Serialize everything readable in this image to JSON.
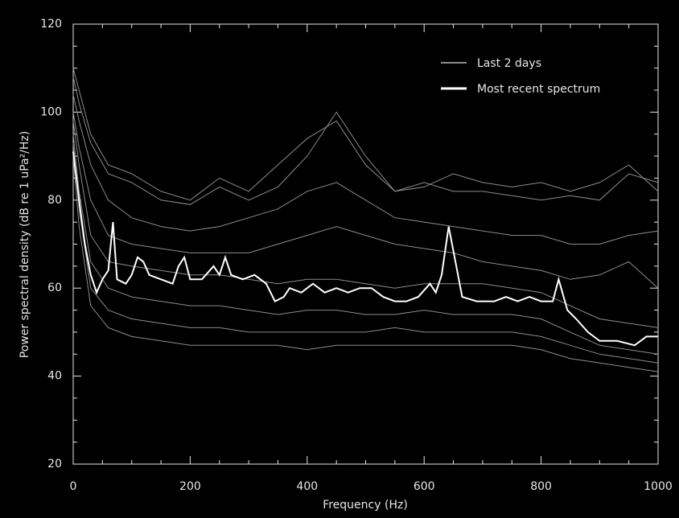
{
  "chart_data": {
    "type": "line",
    "xlabel": "Frequency (Hz)",
    "ylabel": "Power spectral density (dB re 1 uPa²/Hz)",
    "xlim": [
      0,
      1000
    ],
    "xticks": [
      0,
      200,
      400,
      600,
      800,
      1000
    ],
    "ylim": [
      20,
      120
    ],
    "yticks": [
      20,
      40,
      60,
      80,
      100,
      120
    ],
    "legend": "upper right",
    "series": [
      {
        "name": "Last 2 days",
        "color": "#8c8c8c",
        "x": [
          0,
          10,
          30,
          60,
          100,
          150,
          200,
          250,
          300,
          350,
          400,
          450,
          500,
          550,
          600,
          650,
          700,
          750,
          800,
          850,
          900,
          950,
          1000
        ],
        "lines": [
          [
            110,
            105,
            95,
            88,
            86,
            82,
            80,
            85,
            82,
            88,
            94,
            98,
            88,
            82,
            83,
            86,
            84,
            83,
            84,
            82,
            84,
            88,
            82
          ],
          [
            108,
            102,
            93,
            86,
            84,
            80,
            79,
            83,
            80,
            83,
            90,
            100,
            90,
            82,
            84,
            82,
            82,
            81,
            80,
            81,
            80,
            86,
            84
          ],
          [
            104,
            98,
            88,
            80,
            76,
            74,
            73,
            74,
            76,
            78,
            82,
            84,
            80,
            76,
            75,
            74,
            73,
            72,
            72,
            70,
            70,
            72,
            73
          ],
          [
            100,
            92,
            80,
            72,
            70,
            69,
            68,
            68,
            68,
            70,
            72,
            74,
            72,
            70,
            69,
            68,
            66,
            65,
            64,
            62,
            63,
            66,
            60
          ],
          [
            98,
            88,
            72,
            66,
            65,
            64,
            63,
            63,
            62,
            61,
            62,
            62,
            61,
            60,
            61,
            61,
            61,
            60,
            59,
            56,
            53,
            52,
            51
          ],
          [
            95,
            82,
            66,
            60,
            58,
            57,
            56,
            56,
            55,
            54,
            55,
            55,
            54,
            54,
            55,
            54,
            54,
            54,
            53,
            50,
            47,
            46,
            45
          ],
          [
            93,
            78,
            60,
            55,
            53,
            52,
            51,
            51,
            50,
            50,
            50,
            50,
            50,
            51,
            50,
            50,
            50,
            50,
            49,
            47,
            45,
            44,
            43
          ],
          [
            90,
            74,
            56,
            51,
            49,
            48,
            47,
            47,
            47,
            47,
            46,
            47,
            47,
            47,
            47,
            47,
            47,
            47,
            46,
            44,
            43,
            42,
            41
          ]
        ]
      },
      {
        "name": "Most recent spectrum",
        "color": "#ffffff",
        "x": [
          0,
          10,
          20,
          30,
          40,
          50,
          60,
          68,
          75,
          90,
          100,
          110,
          120,
          130,
          150,
          170,
          180,
          190,
          200,
          220,
          240,
          250,
          260,
          270,
          290,
          310,
          330,
          345,
          360,
          370,
          390,
          410,
          430,
          450,
          470,
          490,
          510,
          530,
          550,
          570,
          590,
          610,
          620,
          630,
          642,
          655,
          665,
          690,
          720,
          740,
          760,
          780,
          800,
          820,
          830,
          845,
          860,
          880,
          900,
          930,
          960,
          980,
          1000
        ],
        "values": [
          91,
          80,
          70,
          63,
          59,
          62,
          64,
          75,
          62,
          61,
          63,
          67,
          66,
          63,
          62,
          61,
          65,
          67,
          62,
          62,
          65,
          63,
          67,
          63,
          62,
          63,
          61,
          57,
          58,
          60,
          59,
          61,
          59,
          60,
          59,
          60,
          60,
          58,
          57,
          57,
          58,
          61,
          59,
          63,
          74,
          65,
          58,
          57,
          57,
          58,
          57,
          58,
          57,
          57,
          62,
          55,
          53,
          50,
          48,
          48,
          47,
          49,
          49
        ]
      }
    ]
  }
}
